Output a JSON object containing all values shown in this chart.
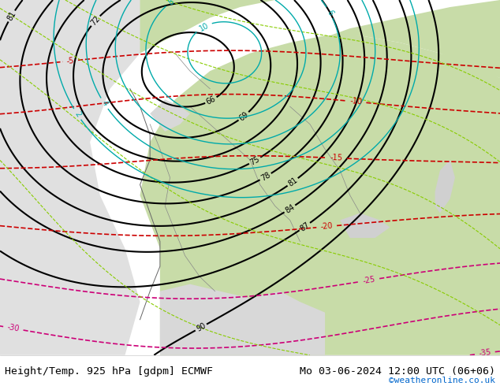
{
  "title_left": "Height/Temp. 925 hPa [gdpm] ECMWF",
  "title_right": "Mo 03-06-2024 12:00 UTC (06+06)",
  "copyright": "©weatheronline.co.uk",
  "bg_color": "#f0f0f0",
  "map_bg_light": "#d8efc8",
  "map_bg_gray": "#c8c8c8",
  "fig_width": 6.34,
  "fig_height": 4.9,
  "dpi": 100,
  "bottom_bar_color": "#e8e8e8",
  "text_color_black": "#000000",
  "text_color_blue": "#0066cc",
  "font_size_title": 9.5,
  "font_size_copyright": 8
}
